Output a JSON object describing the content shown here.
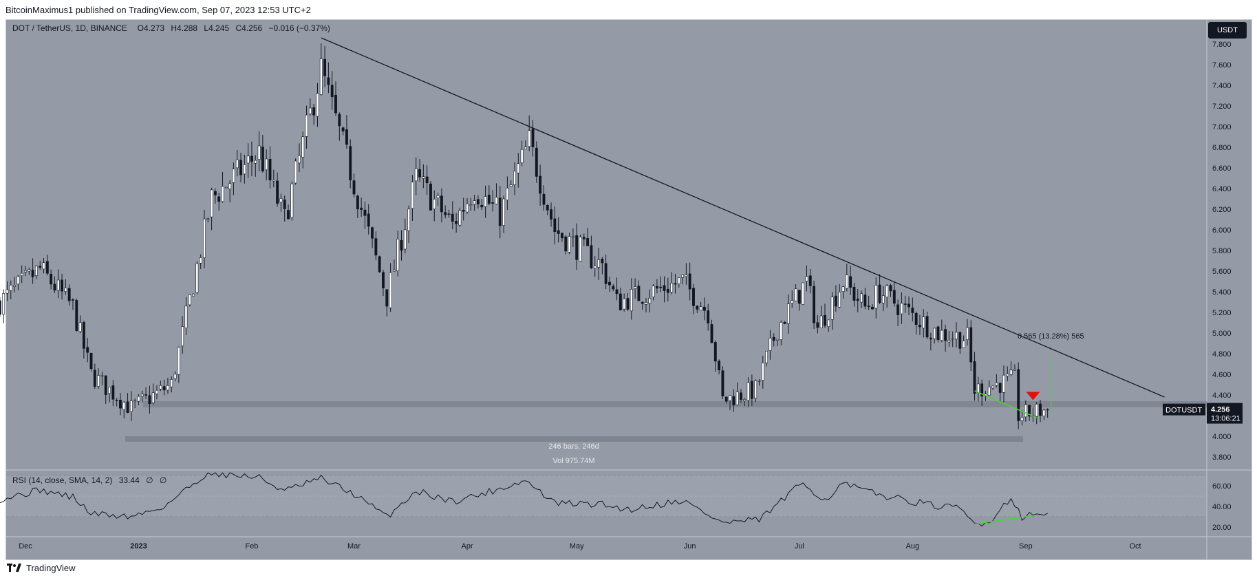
{
  "header": {
    "published": "BitcoinMaximus1 published on TradingView.com, Sep 07, 2023 12:53 UTC+2"
  },
  "legend": {
    "symbol": "DOT / TetherUS, 1D, BINANCE",
    "o_label": "O",
    "o_value": "4.273",
    "h_label": "H",
    "h_value": "4.288",
    "l_label": "L",
    "l_value": "4.245",
    "c_label": "C",
    "c_value": "4.256",
    "change": "−0.016 (−0.37%)"
  },
  "currency_button": "USDT",
  "price_tag": {
    "symbol": "DOTUSDT",
    "price": "4.256",
    "countdown": "13:06:21"
  },
  "measure": {
    "bars": "246 bars, 246d",
    "vol": "Vol 975.74M"
  },
  "annotation": {
    "fib": "0.565 (13.28%) 565"
  },
  "rsi": {
    "legend": "RSI (14, close, SMA, 14, 2)",
    "value": "33.44",
    "na1": "∅",
    "na2": "∅"
  },
  "footer": {
    "brand": "TradingView"
  },
  "colors": {
    "background": "#959ba6",
    "candle_up": "#ffffff",
    "candle_down": "#131722",
    "trendline": "#131722",
    "support_zone": "#7d8089",
    "divergence": "#4cd137",
    "arrow": "#e0120e"
  },
  "chart_data": [
    {
      "type": "candlestick",
      "title": "DOT / TetherUS, 1D, BINANCE",
      "x_ticks": [
        "Dec",
        "2023",
        "Feb",
        "Mar",
        "Apr",
        "May",
        "Jun",
        "Jul",
        "Aug",
        "Sep",
        "Oct"
      ],
      "y_ticks": [
        "3.800",
        "4.000",
        "4.200",
        "4.400",
        "4.600",
        "4.800",
        "5.000",
        "5.200",
        "5.400",
        "5.600",
        "5.800",
        "6.000",
        "6.200",
        "6.400",
        "6.600",
        "6.800",
        "7.000",
        "7.200",
        "7.400",
        "7.600",
        "7.800"
      ],
      "ylim": [
        3.7,
        7.95
      ],
      "anchors": [
        {
          "date": "2022-11-24",
          "price": 5.3
        },
        {
          "date": "2022-12-05",
          "price": 5.62
        },
        {
          "date": "2022-12-14",
          "price": 5.25
        },
        {
          "date": "2022-12-19",
          "price": 4.6
        },
        {
          "date": "2022-12-30",
          "price": 4.27
        },
        {
          "date": "2023-01-10",
          "price": 4.5
        },
        {
          "date": "2023-01-21",
          "price": 6.3
        },
        {
          "date": "2023-02-03",
          "price": 6.75
        },
        {
          "date": "2023-02-10",
          "price": 6.1
        },
        {
          "date": "2023-02-20",
          "price": 7.55
        },
        {
          "date": "2023-03-01",
          "price": 6.45
        },
        {
          "date": "2023-03-10",
          "price": 5.35
        },
        {
          "date": "2023-03-18",
          "price": 6.5
        },
        {
          "date": "2023-03-28",
          "price": 6.05
        },
        {
          "date": "2023-04-03",
          "price": 6.4
        },
        {
          "date": "2023-04-10",
          "price": 6.15
        },
        {
          "date": "2023-04-18",
          "price": 6.85
        },
        {
          "date": "2023-04-25",
          "price": 6.0
        },
        {
          "date": "2023-05-08",
          "price": 5.65
        },
        {
          "date": "2023-05-12",
          "price": 5.3
        },
        {
          "date": "2023-05-30",
          "price": 5.5
        },
        {
          "date": "2023-06-06",
          "price": 5.2
        },
        {
          "date": "2023-06-10",
          "price": 4.35
        },
        {
          "date": "2023-06-19",
          "price": 4.45
        },
        {
          "date": "2023-06-25",
          "price": 5.05
        },
        {
          "date": "2023-07-03",
          "price": 5.5
        },
        {
          "date": "2023-07-06",
          "price": 5.05
        },
        {
          "date": "2023-07-13",
          "price": 5.5
        },
        {
          "date": "2023-07-19",
          "price": 5.25
        },
        {
          "date": "2023-07-23",
          "price": 5.4
        },
        {
          "date": "2023-08-08",
          "price": 5.0
        },
        {
          "date": "2023-08-16",
          "price": 4.95
        },
        {
          "date": "2023-08-18",
          "price": 4.45
        },
        {
          "date": "2023-08-29",
          "price": 4.55
        },
        {
          "date": "2023-08-30",
          "price": 4.2
        },
        {
          "date": "2023-09-07",
          "price": 4.26
        }
      ],
      "resistance_line": [
        {
          "date": "2023-02-20",
          "price": 7.86
        },
        {
          "date": "2023-10-09",
          "price": 4.38
        }
      ],
      "support_zone": [
        4.28,
        4.34
      ],
      "last_price": 4.256
    },
    {
      "type": "line",
      "title": "RSI (14, close, SMA, 14, 2)",
      "y_ticks": [
        "20.00",
        "40.00",
        "60.00"
      ],
      "ylim": [
        15,
        75
      ],
      "last_value": 33.44,
      "anchors": [
        {
          "date": "2022-11-24",
          "value": 47
        },
        {
          "date": "2022-12-05",
          "value": 56
        },
        {
          "date": "2022-12-14",
          "value": 49
        },
        {
          "date": "2022-12-19",
          "value": 33
        },
        {
          "date": "2022-12-30",
          "value": 30
        },
        {
          "date": "2023-01-08",
          "value": 40
        },
        {
          "date": "2023-01-20",
          "value": 73
        },
        {
          "date": "2023-02-03",
          "value": 68
        },
        {
          "date": "2023-02-10",
          "value": 55
        },
        {
          "date": "2023-02-20",
          "value": 67
        },
        {
          "date": "2023-03-01",
          "value": 52
        },
        {
          "date": "2023-03-10",
          "value": 30
        },
        {
          "date": "2023-03-18",
          "value": 55
        },
        {
          "date": "2023-03-28",
          "value": 45
        },
        {
          "date": "2023-04-05",
          "value": 52
        },
        {
          "date": "2023-04-17",
          "value": 65
        },
        {
          "date": "2023-04-25",
          "value": 43
        },
        {
          "date": "2023-05-08",
          "value": 42
        },
        {
          "date": "2023-05-15",
          "value": 37
        },
        {
          "date": "2023-05-30",
          "value": 46
        },
        {
          "date": "2023-06-10",
          "value": 24
        },
        {
          "date": "2023-06-20",
          "value": 27
        },
        {
          "date": "2023-07-02",
          "value": 63
        },
        {
          "date": "2023-07-08",
          "value": 46
        },
        {
          "date": "2023-07-13",
          "value": 62
        },
        {
          "date": "2023-07-22",
          "value": 52
        },
        {
          "date": "2023-08-08",
          "value": 40
        },
        {
          "date": "2023-08-14",
          "value": 38
        },
        {
          "date": "2023-08-18",
          "value": 23
        },
        {
          "date": "2023-08-22",
          "value": 25
        },
        {
          "date": "2023-08-28",
          "value": 49
        },
        {
          "date": "2023-08-31",
          "value": 30
        },
        {
          "date": "2023-09-07",
          "value": 34
        }
      ],
      "divergence_line": [
        {
          "date": "2023-08-18",
          "value": 23
        },
        {
          "date": "2023-09-03",
          "value": 31
        }
      ]
    }
  ]
}
